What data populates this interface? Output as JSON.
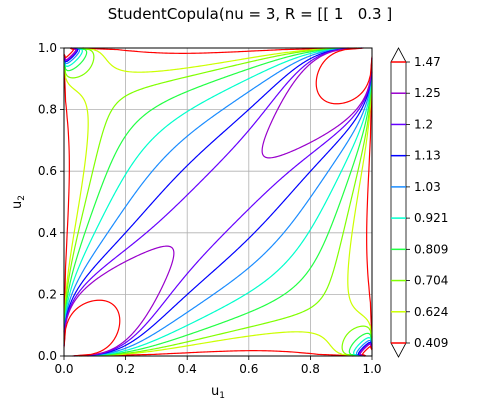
{
  "chart_data": {
    "type": "contour",
    "title": "StudentCopula(nu = 3, R = [[ 1   0.3 ]",
    "xlabel": "u",
    "xlabel_sub": "1",
    "ylabel": "u",
    "ylabel_sub": "2",
    "xlim": [
      0,
      1
    ],
    "ylim": [
      0,
      1
    ],
    "xticks": [
      "0.0",
      "0.2",
      "0.4",
      "0.6",
      "0.8",
      "1.0"
    ],
    "yticks": [
      "0.0",
      "0.2",
      "0.4",
      "0.6",
      "0.8",
      "1.0"
    ],
    "grid": true,
    "copula": {
      "family": "Student",
      "nu": 3,
      "rho": 0.3
    },
    "levels": [
      {
        "label": "0.409",
        "value": 0.409,
        "color": "#ff0000"
      },
      {
        "label": "0.624",
        "value": 0.624,
        "color": "#ccff00"
      },
      {
        "label": "0.704",
        "value": 0.704,
        "color": "#80ff00"
      },
      {
        "label": "0.809",
        "value": 0.809,
        "color": "#22ff44"
      },
      {
        "label": "0.921",
        "value": 0.921,
        "color": "#00ffcc"
      },
      {
        "label": "1.03",
        "value": 1.03,
        "color": "#1a8cff"
      },
      {
        "label": "1.13",
        "value": 1.13,
        "color": "#0000ff"
      },
      {
        "label": "1.2",
        "value": 1.2,
        "color": "#6600ff"
      },
      {
        "label": "1.25",
        "value": 1.25,
        "color": "#9900cc"
      },
      {
        "label": "1.47",
        "value": 1.47,
        "color": "#ff0000"
      }
    ],
    "colorbar": {
      "extend": "both",
      "position": "right"
    }
  }
}
